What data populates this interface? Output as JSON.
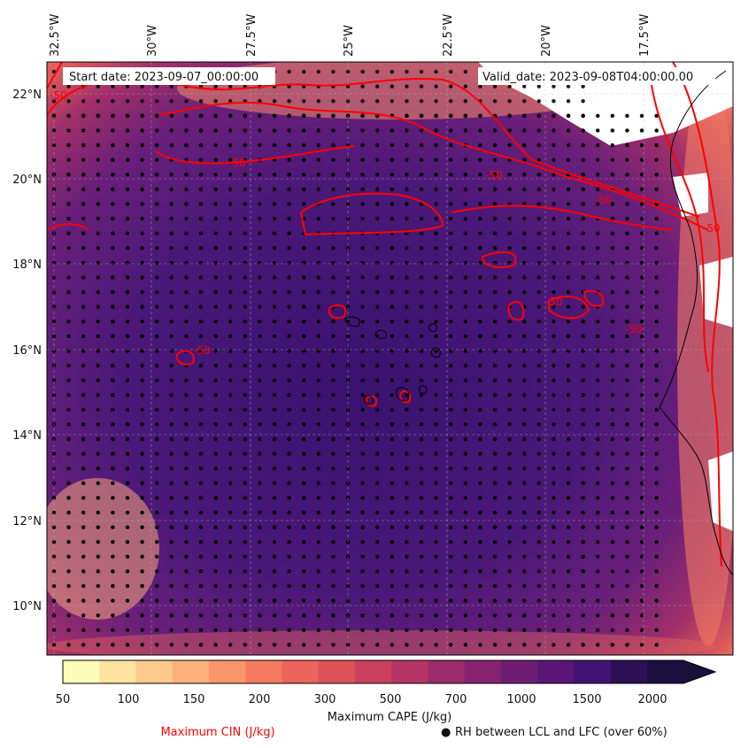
{
  "map": {
    "start_label": "Start date: 2023-09-07_00:00:00",
    "valid_label": "Valid_date: 2023-09-08T04:00:00.00",
    "lon_ticks": [
      "32.5°W",
      "30°W",
      "27.5°W",
      "25°W",
      "22.5°W",
      "20°W",
      "17.5°W"
    ],
    "lat_ticks": [
      "22°N",
      "20°N",
      "18°N",
      "16°N",
      "14°N",
      "12°N",
      "10°N"
    ],
    "contour_labels": [
      "-50",
      "-50",
      "-50",
      "-50",
      "-50",
      "-50",
      "-50",
      "-50"
    ]
  },
  "colorbar": {
    "levels": [
      "50",
      "100",
      "150",
      "200",
      "300",
      "500",
      "700",
      "1000",
      "1500",
      "2000"
    ],
    "colors": [
      "#fffbb8",
      "#fee3a1",
      "#fdc98c",
      "#fcb07b",
      "#fa966c",
      "#f57b60",
      "#ec655a",
      "#de5159",
      "#ca415f",
      "#b43566",
      "#9d2b6c",
      "#862371",
      "#6f1c74",
      "#591677",
      "#431275",
      "#2c0f54",
      "#1c1040"
    ],
    "extend_color": "#1a1038",
    "title": "Maximum CAPE (J/kg)"
  },
  "legend": {
    "cin_label": "Maximum CIN (J/kg)",
    "cin_color": "#ff0000",
    "rh_symbol": "●",
    "rh_label": "RH between LCL and LFC (over 60%)"
  }
}
